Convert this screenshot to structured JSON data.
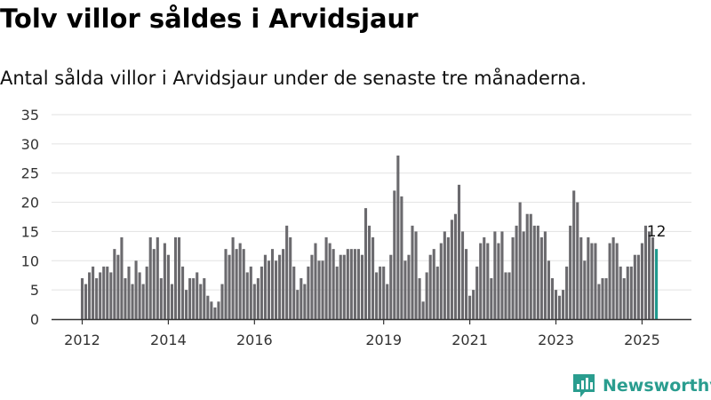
{
  "title": "Tolv villor såldes i Arvidsjaur",
  "subtitle": "Antal sålda villor i Arvidsjaur under de senaste tre månaderna.",
  "brand": {
    "name": "Newsworthy",
    "icon": "newsworthy-logo-icon"
  },
  "colors": {
    "bar": "#6b6a6e",
    "highlight": "#1e9a8e",
    "brand": "#2a9d8f",
    "grid": "#e2e2e2",
    "axis": "#333333"
  },
  "chart_data": {
    "type": "bar",
    "x_unit": "month",
    "start": "2012-01",
    "ylim": [
      0,
      35
    ],
    "yticks": [
      "0",
      "5",
      "10",
      "15",
      "20",
      "25",
      "30",
      "35"
    ],
    "xticks": [
      {
        "label": "2012",
        "month": "2012-01"
      },
      {
        "label": "2014",
        "month": "2014-01"
      },
      {
        "label": "2016",
        "month": "2016-01"
      },
      {
        "label": "2019",
        "month": "2019-01"
      },
      {
        "label": "2021",
        "month": "2021-01"
      },
      {
        "label": "2023",
        "month": "2023-01"
      },
      {
        "label": "2025",
        "month": "2025-01"
      }
    ],
    "values": [
      7,
      6,
      8,
      9,
      7,
      8,
      9,
      9,
      8,
      12,
      11,
      14,
      7,
      9,
      6,
      10,
      8,
      6,
      9,
      14,
      12,
      14,
      7,
      13,
      11,
      6,
      14,
      14,
      9,
      5,
      7,
      7,
      8,
      6,
      7,
      4,
      3,
      2,
      3,
      6,
      12,
      11,
      14,
      12,
      13,
      12,
      8,
      9,
      6,
      7,
      9,
      11,
      10,
      12,
      10,
      11,
      12,
      16,
      14,
      9,
      5,
      7,
      6,
      9,
      11,
      13,
      10,
      10,
      14,
      13,
      12,
      9,
      11,
      11,
      12,
      12,
      12,
      12,
      11,
      19,
      16,
      14,
      8,
      9,
      9,
      6,
      11,
      22,
      28,
      21,
      10,
      11,
      16,
      15,
      7,
      3,
      8,
      11,
      12,
      9,
      13,
      15,
      14,
      17,
      18,
      23,
      15,
      12,
      4,
      5,
      9,
      13,
      14,
      13,
      7,
      15,
      13,
      15,
      8,
      8,
      14,
      16,
      20,
      15,
      18,
      18,
      16,
      16,
      14,
      15,
      10,
      7,
      5,
      4,
      5,
      9,
      16,
      22,
      20,
      14,
      10,
      14,
      13,
      13,
      6,
      7,
      7,
      13,
      14,
      13,
      9,
      7,
      9,
      9,
      11,
      11,
      13,
      16,
      15,
      14,
      12
    ],
    "highlight_label": "12"
  }
}
